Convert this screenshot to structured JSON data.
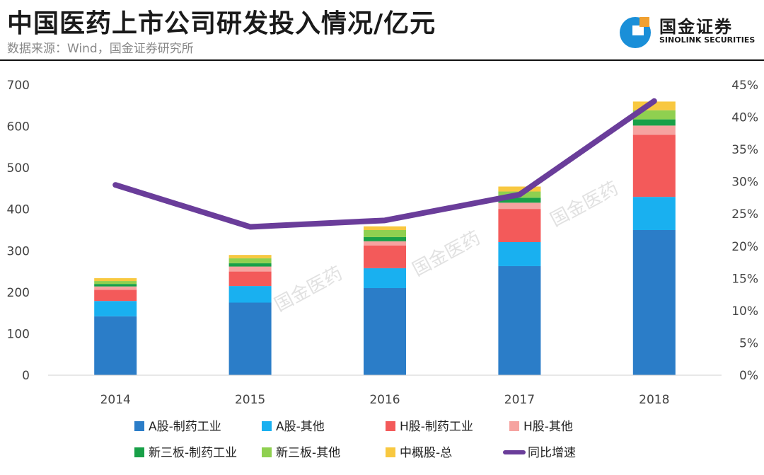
{
  "title": "中国医药上市公司研发投入情况/亿元",
  "source": "数据来源：Wind，国金证券研究所",
  "logo": {
    "cn": "国金证券",
    "en": "SINOLINK SECURITIES",
    "icon": "sinolink-logo-icon",
    "colors": [
      "#1a8fd8",
      "#f0a030"
    ]
  },
  "watermark": "国金医药",
  "chart_data": {
    "type": "bar",
    "stacked": true,
    "categories": [
      "2014",
      "2015",
      "2016",
      "2017",
      "2018"
    ],
    "ylim": [
      0,
      700
    ],
    "y_ticks": [
      "0",
      "100",
      "200",
      "300",
      "400",
      "500",
      "600",
      "700"
    ],
    "y2lim": [
      0,
      45
    ],
    "y2_ticks": [
      "0%",
      "5%",
      "10%",
      "15%",
      "20%",
      "25%",
      "30%",
      "35%",
      "40%",
      "45%"
    ],
    "series": [
      {
        "name": "A股-制药工业",
        "color": "#2b7dc8",
        "values": [
          142,
          175,
          210,
          263,
          350
        ]
      },
      {
        "name": "A股-其他",
        "color": "#19b0f0",
        "values": [
          37,
          40,
          48,
          58,
          80
        ]
      },
      {
        "name": "H股-制药工业",
        "color": "#f35a5a",
        "values": [
          27,
          35,
          55,
          80,
          150
        ]
      },
      {
        "name": "H股-其他",
        "color": "#f6a3a0",
        "values": [
          8,
          12,
          10,
          15,
          22
        ]
      },
      {
        "name": "新三板-制药工业",
        "color": "#18a048",
        "values": [
          6,
          8,
          10,
          12,
          15
        ]
      },
      {
        "name": "新三板-其他",
        "color": "#8fd050",
        "values": [
          7,
          12,
          17,
          15,
          22
        ]
      },
      {
        "name": "中概股-总",
        "color": "#f8c840",
        "values": [
          7,
          8,
          9,
          12,
          21
        ]
      }
    ],
    "line": {
      "name": "同比增速",
      "color": "#6a3d9a",
      "axis": "right",
      "values": [
        29.5,
        23.0,
        24.0,
        28.0,
        42.5
      ]
    },
    "legend_position": "bottom",
    "grid": false
  }
}
